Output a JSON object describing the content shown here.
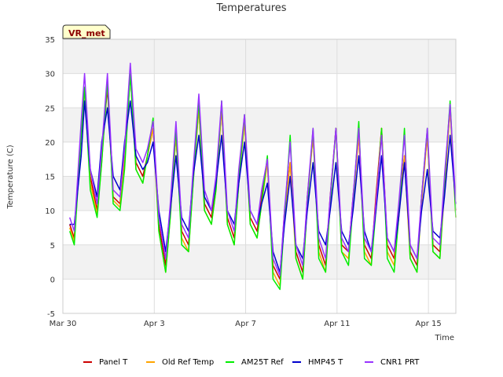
{
  "chart_data": {
    "type": "line",
    "title": "Temperatures",
    "xlabel": "Time",
    "ylabel": "Temperature (C)",
    "annotation": "VR_met",
    "ylim": [
      -5,
      35
    ],
    "yticks": [
      -5,
      0,
      5,
      10,
      15,
      20,
      25,
      30,
      35
    ],
    "xlim": [
      0,
      17.2
    ],
    "xticks": [
      {
        "day": 0,
        "label": "Mar 30"
      },
      {
        "day": 4,
        "label": "Apr 3"
      },
      {
        "day": 8,
        "label": "Apr 7"
      },
      {
        "day": 12,
        "label": "Apr 11"
      },
      {
        "day": 16,
        "label": "Apr 15"
      }
    ],
    "grid": true,
    "legend_position": "bottom",
    "x_unit": "days since Mar 30",
    "series": [
      {
        "name": "Panel T",
        "color": "#cc0000",
        "x": [
          0.3,
          0.5,
          0.8,
          0.95,
          1.2,
          1.5,
          1.7,
          1.95,
          2.2,
          2.5,
          2.7,
          2.95,
          3.2,
          3.5,
          3.7,
          3.95,
          4.2,
          4.5,
          4.7,
          4.95,
          5.2,
          5.5,
          5.7,
          5.95,
          6.2,
          6.5,
          6.7,
          6.95,
          7.2,
          7.5,
          7.7,
          7.95,
          8.2,
          8.5,
          8.7,
          8.95,
          9.2,
          9.5,
          9.7,
          9.95,
          10.2,
          10.5,
          10.7,
          10.95,
          11.2,
          11.5,
          11.7,
          11.95,
          12.2,
          12.5,
          12.7,
          12.95,
          13.2,
          13.5,
          13.7,
          13.95,
          14.2,
          14.5,
          14.7,
          14.95,
          15.2,
          15.5,
          15.7,
          15.95,
          16.2,
          16.5,
          16.7,
          16.95,
          17.2
        ],
        "y": [
          8,
          6,
          22,
          28,
          15,
          10,
          18,
          28,
          12,
          11,
          18,
          30,
          17,
          15,
          18,
          22,
          8,
          2,
          10,
          21,
          7,
          5,
          15,
          25,
          11,
          9,
          14,
          25,
          9,
          6,
          15,
          23,
          9,
          7,
          12,
          17,
          2,
          0,
          10,
          17,
          4,
          1,
          12,
          21,
          5,
          2,
          12,
          22,
          5,
          4,
          12,
          21,
          5,
          3,
          12,
          22,
          5,
          3,
          10,
          18,
          4,
          2,
          12,
          21,
          5,
          4,
          14,
          25,
          10
        ]
      },
      {
        "name": "Old Ref Temp",
        "color": "#ffa500",
        "x": [
          0.3,
          0.5,
          0.8,
          0.95,
          1.2,
          1.5,
          1.7,
          1.95,
          2.2,
          2.5,
          2.7,
          2.95,
          3.2,
          3.5,
          3.7,
          3.95,
          4.2,
          4.5,
          4.7,
          4.95,
          5.2,
          5.5,
          5.7,
          5.95,
          6.2,
          6.5,
          6.7,
          6.95,
          7.2,
          7.5,
          7.7,
          7.95,
          8.2,
          8.5,
          8.7,
          8.95,
          9.2,
          9.5,
          9.7,
          9.95,
          10.2,
          10.5,
          10.7,
          10.95,
          11.2,
          11.5,
          11.7,
          11.95,
          12.2,
          12.5,
          12.7,
          12.95,
          13.2,
          13.5,
          13.7,
          13.95,
          14.2,
          14.5,
          14.7,
          14.95,
          15.2,
          15.5,
          15.7,
          15.95,
          16.2,
          16.5,
          16.7,
          16.95,
          17.2
        ],
        "y": [
          7.5,
          5.5,
          21,
          28,
          14,
          9.5,
          17,
          29,
          11.5,
          10.5,
          17,
          30,
          16,
          14,
          18,
          22,
          7,
          1,
          9,
          21,
          6,
          4,
          14,
          25,
          10,
          8,
          13,
          25,
          8,
          5,
          14,
          23,
          8,
          6,
          11,
          17,
          1,
          -1,
          9,
          17,
          3,
          0,
          11,
          21,
          4,
          1,
          11,
          22,
          4,
          3,
          11,
          21,
          4,
          2,
          11,
          22,
          4,
          2,
          9,
          18,
          3,
          1,
          11,
          21,
          4,
          3,
          13,
          25,
          9
        ]
      },
      {
        "name": "AM25T Ref",
        "color": "#00ee00",
        "x": [
          0.3,
          0.5,
          0.8,
          0.95,
          1.2,
          1.5,
          1.7,
          1.95,
          2.2,
          2.5,
          2.7,
          2.95,
          3.2,
          3.5,
          3.7,
          3.95,
          4.2,
          4.5,
          4.7,
          4.95,
          5.2,
          5.5,
          5.7,
          5.95,
          6.2,
          6.5,
          6.7,
          6.95,
          7.2,
          7.5,
          7.7,
          7.95,
          8.2,
          8.5,
          8.7,
          8.95,
          9.2,
          9.5,
          9.7,
          9.95,
          10.2,
          10.5,
          10.7,
          10.95,
          11.2,
          11.5,
          11.7,
          11.95,
          12.2,
          12.5,
          12.7,
          12.95,
          13.2,
          13.5,
          13.7,
          13.95,
          14.2,
          14.5,
          14.7,
          14.95,
          15.2,
          15.5,
          15.7,
          15.95,
          16.2,
          16.5,
          16.7,
          16.95,
          17.2
        ],
        "y": [
          7,
          5,
          21,
          28,
          13,
          9,
          17,
          29,
          11,
          10,
          16,
          30,
          16,
          14,
          18,
          23.5,
          7,
          1,
          9,
          22,
          5,
          4,
          14,
          26,
          10,
          8,
          13,
          26,
          8,
          5,
          14,
          24,
          8,
          6,
          11,
          18,
          0,
          -1.5,
          9,
          21,
          3,
          0,
          11,
          22,
          3,
          1,
          11,
          22,
          4,
          2,
          11,
          23,
          3,
          2,
          10,
          22,
          3,
          1,
          9,
          22,
          3,
          1,
          12,
          22,
          4,
          3,
          14,
          26,
          9
        ]
      },
      {
        "name": "HMP45 T",
        "color": "#0000cc",
        "x": [
          0.3,
          0.5,
          0.8,
          0.95,
          1.2,
          1.5,
          1.7,
          1.95,
          2.2,
          2.5,
          2.7,
          2.95,
          3.2,
          3.5,
          3.7,
          3.95,
          4.2,
          4.5,
          4.7,
          4.95,
          5.2,
          5.5,
          5.7,
          5.95,
          6.2,
          6.5,
          6.7,
          6.95,
          7.2,
          7.5,
          7.7,
          7.95,
          8.2,
          8.5,
          8.7,
          8.95,
          9.2,
          9.5,
          9.7,
          9.95,
          10.2,
          10.5,
          10.7,
          10.95,
          11.2,
          11.5,
          11.7,
          11.95,
          12.2,
          12.5,
          12.7,
          12.95,
          13.2,
          13.5,
          13.7,
          13.95,
          14.2,
          14.5,
          14.7,
          14.95,
          15.2,
          15.5,
          15.7,
          15.95,
          16.2,
          16.5,
          16.7,
          16.95,
          17.2
        ],
        "y": [
          8,
          8,
          18,
          26,
          16,
          12,
          20,
          25,
          15,
          13,
          20,
          26,
          18,
          16,
          17,
          20,
          10,
          4,
          10,
          18,
          9,
          7,
          15,
          21,
          12,
          10,
          14,
          21,
          10,
          8,
          14,
          20,
          10,
          8,
          11,
          14,
          4,
          1,
          8,
          15,
          5,
          3,
          10,
          17,
          7,
          5,
          10,
          17,
          7,
          5,
          10,
          18,
          7,
          4,
          10,
          18,
          6,
          4,
          9,
          17,
          5,
          3,
          10,
          16,
          7,
          6,
          12,
          21,
          11
        ]
      },
      {
        "name": "CNR1 PRT",
        "color": "#9933ff",
        "x": [
          0.3,
          0.5,
          0.8,
          0.95,
          1.2,
          1.5,
          1.7,
          1.95,
          2.2,
          2.5,
          2.7,
          2.95,
          3.2,
          3.5,
          3.7,
          3.95,
          4.2,
          4.5,
          4.7,
          4.95,
          5.2,
          5.5,
          5.7,
          5.95,
          6.2,
          6.5,
          6.7,
          6.95,
          7.2,
          7.5,
          7.7,
          7.95,
          8.2,
          8.5,
          8.7,
          8.95,
          9.2,
          9.5,
          9.7,
          9.95,
          10.2,
          10.5,
          10.7,
          10.95,
          11.2,
          11.5,
          11.7,
          11.95,
          12.2,
          12.5,
          12.7,
          12.95,
          13.2,
          13.5,
          13.7,
          13.95,
          14.2,
          14.5,
          14.7,
          14.95,
          15.2,
          15.5,
          15.7,
          15.95,
          16.2,
          16.5,
          16.7,
          16.95,
          17.2
        ],
        "y": [
          9,
          7,
          23,
          30,
          16,
          11,
          19,
          30,
          13,
          12,
          19,
          31.5,
          19,
          17,
          19,
          23,
          9,
          3,
          11,
          23,
          8,
          6,
          16,
          27,
          13,
          10,
          15,
          26,
          10,
          7,
          16,
          24,
          10,
          8,
          13,
          17.5,
          3,
          0.5,
          10,
          20,
          5,
          2,
          12,
          22,
          6,
          3,
          12,
          22,
          6,
          4,
          12,
          22,
          6,
          4,
          11,
          21,
          6,
          4,
          11,
          21,
          5,
          3,
          12,
          22,
          6,
          5,
          15,
          25.5,
          11
        ]
      }
    ]
  }
}
